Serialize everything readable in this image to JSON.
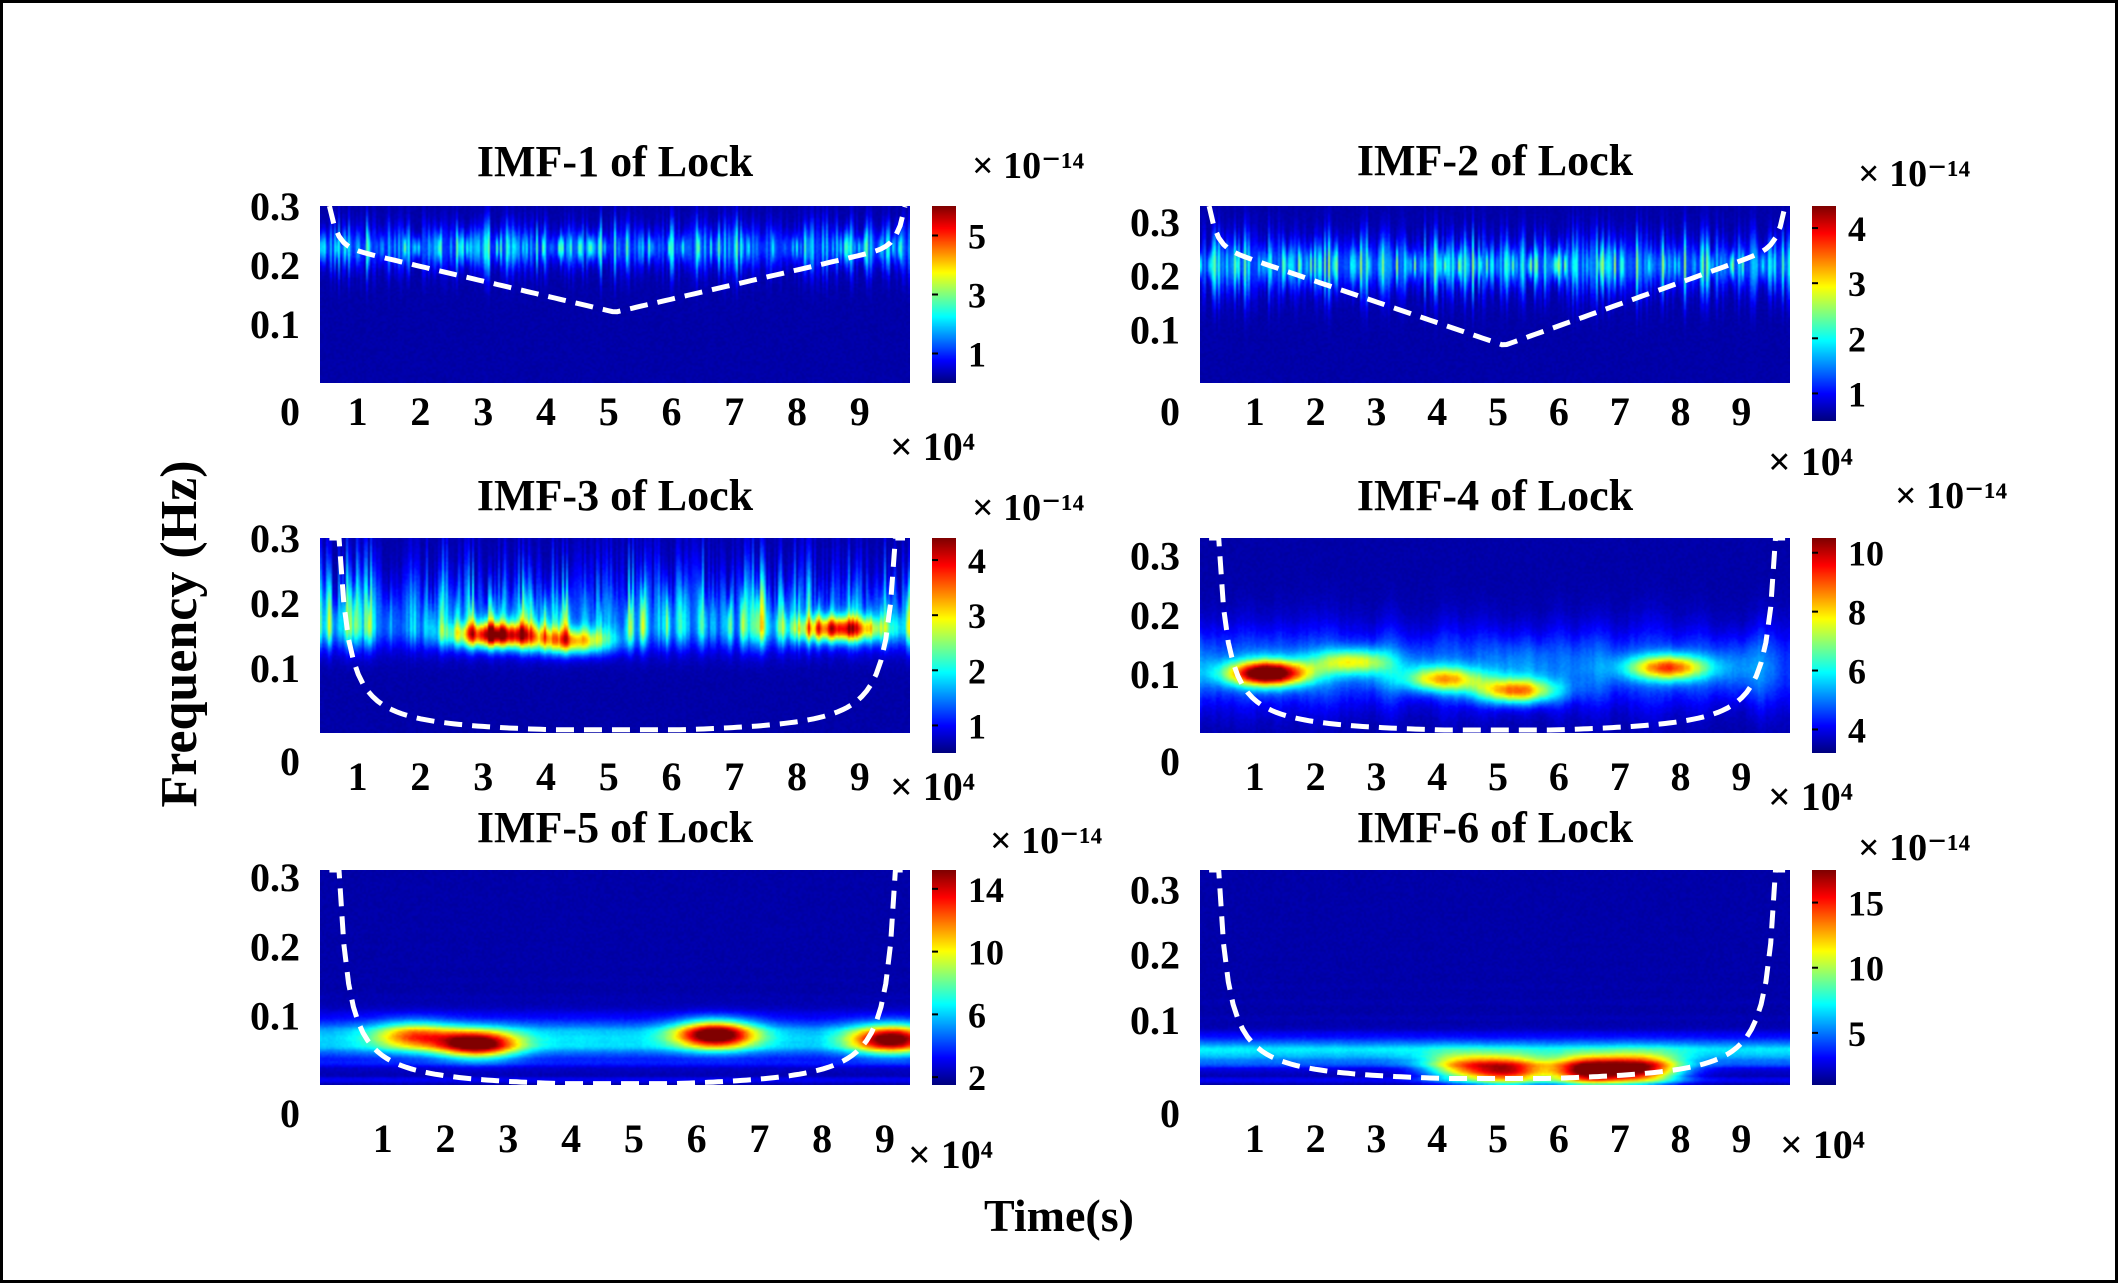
{
  "figure": {
    "ylabel": "Frequency (Hz)",
    "xlabel": "Time(s)"
  },
  "chart_data": [
    {
      "type": "heatmap",
      "title": "IMF-1 of Lock",
      "x_ticks": [
        "1",
        "2",
        "3",
        "4",
        "5",
        "6",
        "7",
        "8",
        "9"
      ],
      "x_exponent": "× 10⁴",
      "y_ticks": [
        "0",
        "0.1",
        "0.2",
        "0.3"
      ],
      "y_range": [
        0,
        0.3
      ],
      "xlim": [
        0.4,
        9.8
      ],
      "colorbar": {
        "ticks": [
          "1",
          "3",
          "5"
        ],
        "range": [
          0,
          6
        ],
        "exponent": "× 10⁻¹⁴"
      },
      "band": {
        "center_hz": 0.23,
        "width_hz": 0.015,
        "peak": 0.35,
        "style": "fine"
      },
      "coi": {
        "shape": "v",
        "edge_hz": 0.3,
        "min_hz": 0.12,
        "min_x": 5.1
      },
      "blobs": []
    },
    {
      "type": "heatmap",
      "title": "IMF-2 of Lock",
      "x_ticks": [
        "1",
        "2",
        "3",
        "4",
        "5",
        "6",
        "7",
        "8",
        "9"
      ],
      "x_exponent": "× 10⁴",
      "y_ticks": [
        "0",
        "0.1",
        "0.2",
        "0.3"
      ],
      "y_range": [
        0,
        0.33
      ],
      "xlim": [
        0.1,
        9.8
      ],
      "colorbar": {
        "ticks": [
          "1",
          "2",
          "3",
          "4"
        ],
        "range": [
          0.5,
          4.4
        ],
        "exponent": "× 10⁻¹⁴"
      },
      "band": {
        "center_hz": 0.22,
        "width_hz": 0.02,
        "peak": 0.4,
        "style": "fine"
      },
      "coi": {
        "shape": "v",
        "edge_hz": 0.33,
        "min_hz": 0.07,
        "min_x": 5.1
      },
      "blobs": []
    },
    {
      "type": "heatmap",
      "title": "IMF-3 of Lock",
      "x_ticks": [
        "1",
        "2",
        "3",
        "4",
        "5",
        "6",
        "7",
        "8",
        "9"
      ],
      "x_exponent": "× 10⁴",
      "y_ticks": [
        "0",
        "0.1",
        "0.2",
        "0.3"
      ],
      "y_range": [
        0,
        0.3
      ],
      "xlim": [
        0.4,
        9.8
      ],
      "colorbar": {
        "ticks": [
          "1",
          "2",
          "3",
          "4"
        ],
        "range": [
          0.5,
          4.4
        ],
        "exponent": "× 10⁻¹⁴"
      },
      "band": {
        "center_hz": 0.165,
        "width_hz": 0.025,
        "peak": 0.55,
        "style": "spiky"
      },
      "coi": {
        "shape": "u",
        "edge_hz": 0.3,
        "min_hz": 0.005,
        "min_x": 4.8
      },
      "blobs": [
        {
          "x": 3.2,
          "y": 0.15,
          "v": 0.75
        },
        {
          "x": 4.4,
          "y": 0.14,
          "v": 0.55
        },
        {
          "x": 8.7,
          "y": 0.16,
          "v": 0.65
        }
      ]
    },
    {
      "type": "heatmap",
      "title": "IMF-4 of Lock",
      "x_ticks": [
        "1",
        "2",
        "3",
        "4",
        "5",
        "6",
        "7",
        "8",
        "9"
      ],
      "x_exponent": "× 10⁴",
      "y_ticks": [
        "0",
        "0.1",
        "0.2",
        "0.3"
      ],
      "y_range": [
        0,
        0.33
      ],
      "xlim": [
        0.1,
        9.8
      ],
      "colorbar": {
        "ticks": [
          "4",
          "6",
          "8",
          "10"
        ],
        "range": [
          3.2,
          10.5
        ],
        "exponent": "× 10⁻¹⁴"
      },
      "band": {
        "center_hz": 0.11,
        "width_hz": 0.03,
        "peak": 0.22,
        "style": "blotchy"
      },
      "coi": {
        "shape": "u",
        "edge_hz": 0.33,
        "min_hz": 0.005,
        "min_x": 4.9
      },
      "blobs": [
        {
          "x": 1.2,
          "y": 0.1,
          "v": 0.95
        },
        {
          "x": 4.1,
          "y": 0.09,
          "v": 0.5
        },
        {
          "x": 5.3,
          "y": 0.07,
          "v": 0.6
        },
        {
          "x": 7.8,
          "y": 0.11,
          "v": 0.6
        },
        {
          "x": 2.6,
          "y": 0.12,
          "v": 0.4
        }
      ]
    },
    {
      "type": "heatmap",
      "title": "IMF-5 of Lock",
      "x_ticks": [
        "1",
        "2",
        "3",
        "4",
        "5",
        "6",
        "7",
        "8",
        "9"
      ],
      "x_exponent": "× 10⁴",
      "y_ticks": [
        "0",
        "0.1",
        "0.2",
        "0.3"
      ],
      "y_range": [
        0,
        0.31
      ],
      "xlim": [
        0.0,
        9.4
      ],
      "colorbar": {
        "ticks": [
          "2",
          "6",
          "10",
          "14"
        ],
        "range": [
          1.5,
          15.2
        ],
        "exponent": "× 10⁻¹⁴"
      },
      "band": {
        "center_hz": 0.065,
        "width_hz": 0.02,
        "peak": 0.3,
        "style": "smooth"
      },
      "coi": {
        "shape": "u",
        "edge_hz": 0.31,
        "min_hz": 0.002,
        "min_x": 5.0
      },
      "blobs": [
        {
          "x": 2.5,
          "y": 0.058,
          "v": 0.8
        },
        {
          "x": 6.3,
          "y": 0.072,
          "v": 0.85
        },
        {
          "x": 9.1,
          "y": 0.065,
          "v": 0.75
        },
        {
          "x": 1.5,
          "y": 0.07,
          "v": 0.45
        }
      ]
    },
    {
      "type": "heatmap",
      "title": "IMF-6 of Lock",
      "x_ticks": [
        "1",
        "2",
        "3",
        "4",
        "5",
        "6",
        "7",
        "8",
        "9"
      ],
      "x_exponent": "× 10⁴",
      "y_ticks": [
        "0",
        "0.1",
        "0.2",
        "0.3"
      ],
      "y_range": [
        0,
        0.33
      ],
      "xlim": [
        0.1,
        9.8
      ],
      "colorbar": {
        "ticks": [
          "5",
          "10",
          "15"
        ],
        "range": [
          1.0,
          17.5
        ],
        "exponent": "× 10⁻¹⁴"
      },
      "band": {
        "center_hz": 0.05,
        "width_hz": 0.015,
        "peak": 0.3,
        "style": "smooth"
      },
      "coi": {
        "shape": "u",
        "edge_hz": 0.33,
        "min_hz": 0.01,
        "min_x": 5.0
      },
      "blobs": [
        {
          "x": 5.2,
          "y": 0.02,
          "v": 0.75
        },
        {
          "x": 6.5,
          "y": 0.02,
          "v": 0.95
        },
        {
          "x": 7.4,
          "y": 0.022,
          "v": 0.8
        },
        {
          "x": 4.4,
          "y": 0.025,
          "v": 0.5
        }
      ]
    }
  ]
}
